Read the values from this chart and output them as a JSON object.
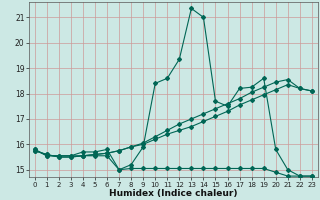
{
  "xlabel": "Humidex (Indice chaleur)",
  "bg_color": "#cce8e4",
  "plot_bg_color": "#cce8e4",
  "grid_color": "#cc9999",
  "line_color": "#006655",
  "xlim": [
    -0.5,
    23.5
  ],
  "ylim": [
    14.7,
    21.6
  ],
  "yticks": [
    15,
    16,
    17,
    18,
    19,
    20,
    21
  ],
  "xticks": [
    0,
    1,
    2,
    3,
    4,
    5,
    6,
    7,
    8,
    9,
    10,
    11,
    12,
    13,
    14,
    15,
    16,
    17,
    18,
    19,
    20,
    21,
    22,
    23
  ],
  "line_flat_x": [
    0,
    1,
    2,
    3,
    4,
    5,
    6,
    7,
    8,
    9,
    10,
    11,
    12,
    13,
    14,
    15,
    16,
    17,
    18,
    19,
    20,
    21,
    22,
    23
  ],
  "line_flat_y": [
    15.8,
    15.55,
    15.55,
    15.55,
    15.55,
    15.55,
    15.55,
    15.0,
    15.05,
    15.05,
    15.05,
    15.05,
    15.05,
    15.05,
    15.05,
    15.05,
    15.05,
    15.05,
    15.05,
    15.05,
    14.9,
    14.75,
    14.75,
    14.75
  ],
  "line_peak_x": [
    0,
    1,
    2,
    3,
    4,
    5,
    6,
    7,
    8,
    9,
    10,
    11,
    12,
    13,
    14,
    15,
    16,
    17,
    18,
    19,
    20,
    21,
    22,
    23
  ],
  "line_peak_y": [
    15.8,
    15.55,
    15.55,
    15.55,
    15.7,
    15.7,
    15.8,
    15.0,
    15.2,
    15.9,
    18.4,
    18.6,
    19.35,
    21.35,
    21.0,
    17.7,
    17.5,
    18.2,
    18.25,
    18.6,
    15.8,
    15.0,
    14.75,
    14.75
  ],
  "line_diag1_x": [
    0,
    1,
    2,
    3,
    4,
    5,
    6,
    7,
    8,
    9,
    10,
    11,
    12,
    13,
    14,
    15,
    16,
    17,
    18,
    19,
    20,
    21,
    22,
    23
  ],
  "line_diag1_y": [
    15.75,
    15.6,
    15.5,
    15.5,
    15.55,
    15.6,
    15.65,
    15.75,
    15.9,
    16.0,
    16.2,
    16.4,
    16.55,
    16.7,
    16.9,
    17.1,
    17.3,
    17.55,
    17.75,
    17.95,
    18.15,
    18.35,
    18.2,
    18.1
  ],
  "line_diag2_x": [
    0,
    1,
    2,
    3,
    4,
    5,
    6,
    7,
    8,
    9,
    10,
    11,
    12,
    13,
    14,
    15,
    16,
    17,
    18,
    19,
    20,
    21,
    22,
    23
  ],
  "line_diag2_y": [
    15.75,
    15.6,
    15.5,
    15.5,
    15.55,
    15.6,
    15.65,
    15.75,
    15.9,
    16.05,
    16.3,
    16.55,
    16.8,
    17.0,
    17.2,
    17.4,
    17.6,
    17.8,
    18.05,
    18.25,
    18.45,
    18.55,
    18.2,
    18.1
  ]
}
